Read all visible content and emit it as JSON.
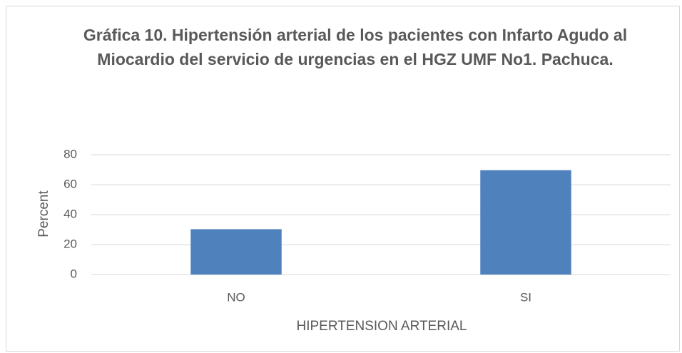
{
  "chart_data": {
    "type": "bar",
    "title": "Gráfica 10. Hipertensión arterial de los pacientes con Infarto Agudo al Miocardio del servicio de urgencias en el HGZ UMF No1. Pachuca.",
    "x_label": "HIPERTENSION ARTERIAL",
    "y_label": "Percent",
    "categories": [
      "NO",
      "SI"
    ],
    "values": [
      30.3,
      69.7
    ],
    "color": "#4f81bd",
    "ylim": [
      0,
      80
    ],
    "yticks": [
      0,
      20,
      40,
      60,
      80
    ],
    "grid": true
  }
}
